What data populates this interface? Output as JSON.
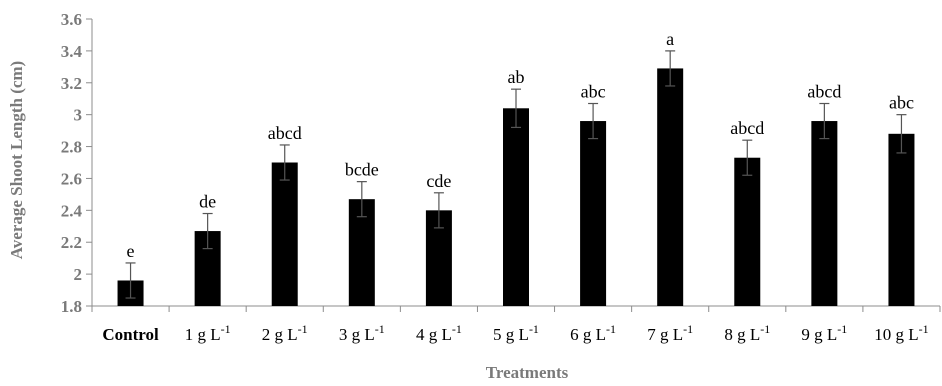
{
  "chart_data": {
    "type": "bar",
    "title": "",
    "xlabel": "Treatments",
    "ylabel": "Average Shoot Length (cm)",
    "ylim": [
      1.8,
      3.6
    ],
    "y_ticks": [
      "1.8",
      "2",
      "2.2",
      "2.4",
      "2.6",
      "2.8",
      "3",
      "3.2",
      "3.4",
      "3.6"
    ],
    "categories": [
      {
        "prefix": "Control",
        "sup": ""
      },
      {
        "prefix": "1 g L",
        "sup": "-1"
      },
      {
        "prefix": "2 g L",
        "sup": "-1"
      },
      {
        "prefix": "3 g L",
        "sup": "-1"
      },
      {
        "prefix": "4 g L",
        "sup": "-1"
      },
      {
        "prefix": "5 g L",
        "sup": "-1"
      },
      {
        "prefix": "6 g L",
        "sup": "-1"
      },
      {
        "prefix": "7 g L",
        "sup": "-1"
      },
      {
        "prefix": "8 g L",
        "sup": "-1"
      },
      {
        "prefix": "9 g L",
        "sup": "-1"
      },
      {
        "prefix": "10 g L",
        "sup": "-1"
      }
    ],
    "values": [
      1.96,
      2.27,
      2.7,
      2.47,
      2.4,
      3.04,
      2.96,
      3.29,
      2.73,
      2.96,
      2.88
    ],
    "errors": [
      0.11,
      0.11,
      0.11,
      0.11,
      0.11,
      0.12,
      0.11,
      0.11,
      0.11,
      0.11,
      0.12
    ],
    "significance": [
      "e",
      "de",
      "abcd",
      "bcde",
      "cde",
      "ab",
      "abc",
      "a",
      "abcd",
      "abcd",
      "abc"
    ],
    "bar_color": "#000000",
    "grid": false,
    "legend": "none"
  }
}
